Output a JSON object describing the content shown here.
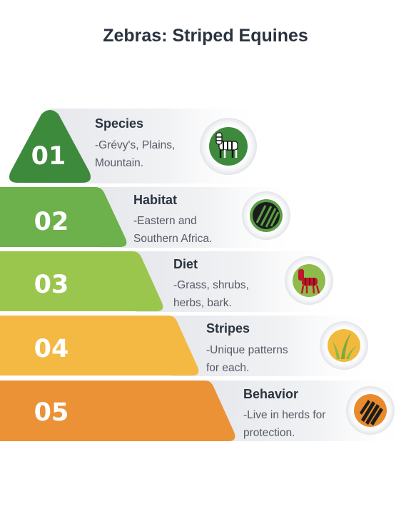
{
  "title": "Zebras: Striped Equines",
  "items": [
    {
      "number": "01",
      "label": "Species",
      "desc_line1": "-Grévy's, Plains,",
      "desc_line2": "Mountain.",
      "color": "#3e8a3c",
      "icon_bg": "#3e8a3c",
      "icon": "zebra-icon"
    },
    {
      "number": "02",
      "label": "Habitat",
      "desc_line1": "-Eastern and",
      "desc_line2": "Southern Africa.",
      "color": "#6cb14b",
      "icon_bg": "#5a9e46",
      "icon": "stripes-icon"
    },
    {
      "number": "03",
      "label": "Diet",
      "desc_line1": "-Grass, shrubs,",
      "desc_line2": "herbs, bark.",
      "color": "#9bc64e",
      "icon_bg": "#8dbb4c",
      "icon": "red-zebra-icon"
    },
    {
      "number": "04",
      "label": "Stripes",
      "desc_line1": "-Unique patterns",
      "desc_line2": "for each.",
      "color": "#f4b942",
      "icon_bg": "#f2ba3c",
      "icon": "grass-icon"
    },
    {
      "number": "05",
      "label": "Behavior",
      "desc_line1": "-Live in herds for",
      "desc_line2": "protection.",
      "color": "#ec9236",
      "icon_bg": "#e98a2d",
      "icon": "zebra-pattern-icon"
    }
  ]
}
